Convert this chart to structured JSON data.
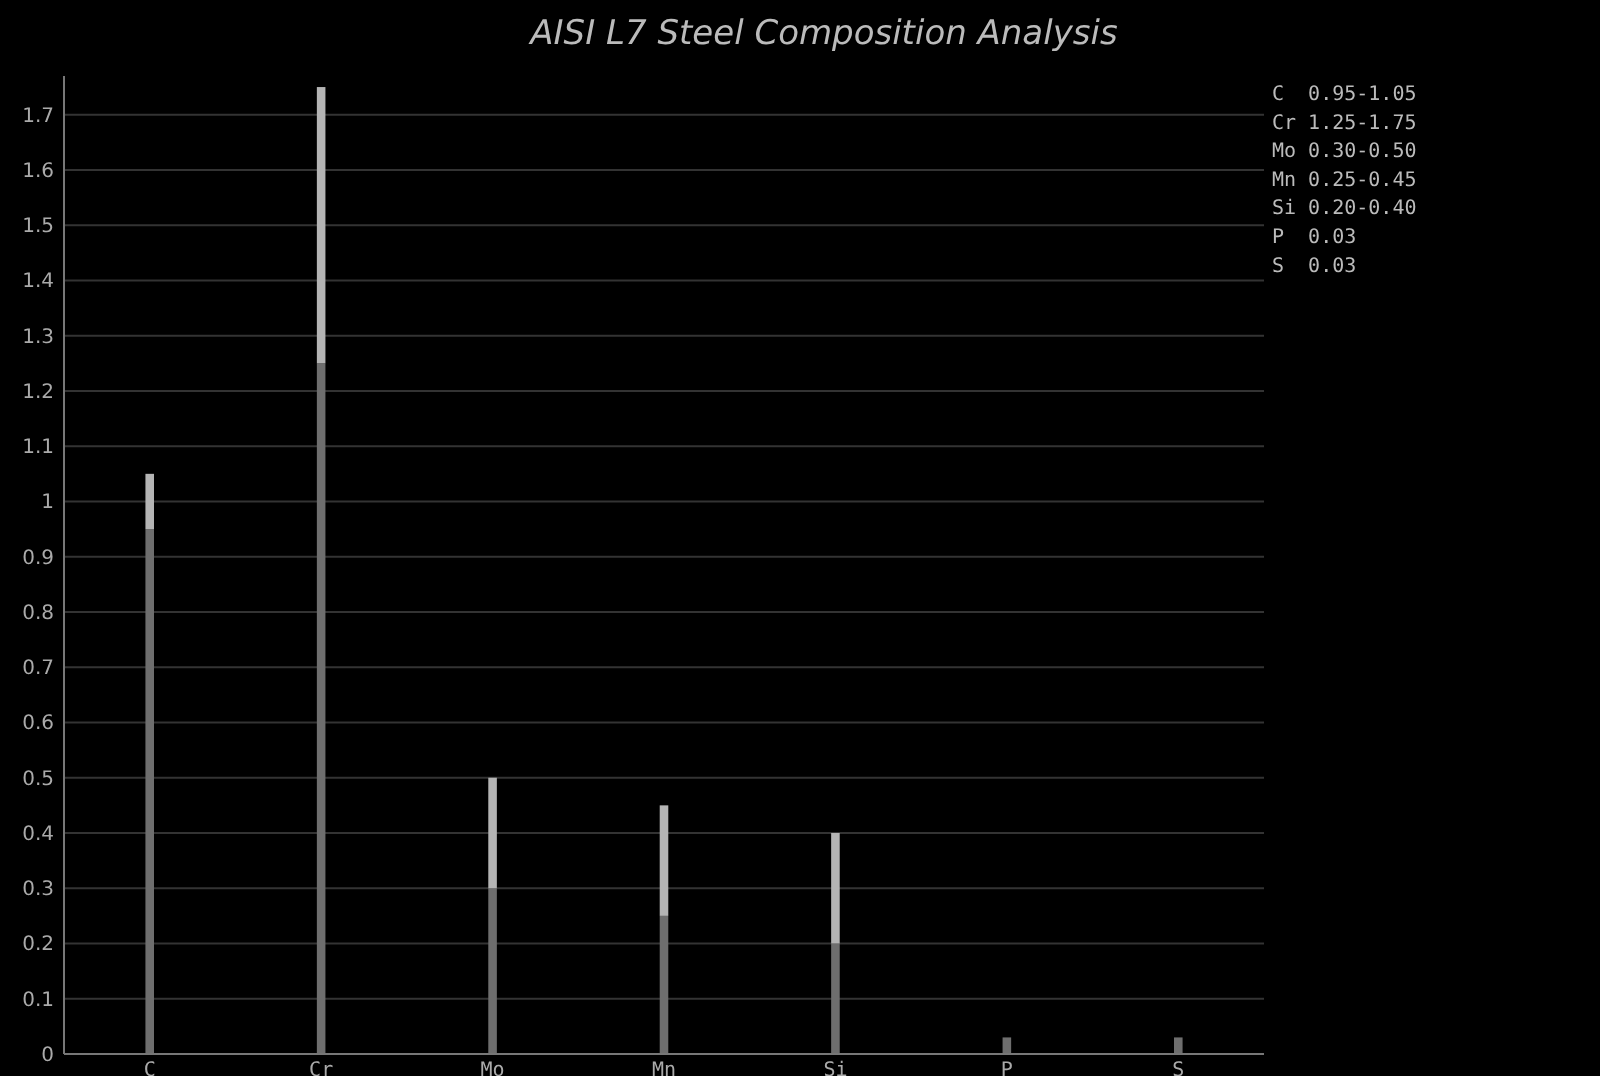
{
  "chart_data": {
    "type": "bar",
    "title": "AISI L7 Steel Composition Analysis",
    "categories": [
      "C",
      "Cr",
      "Mo",
      "Mn",
      "Si",
      "P",
      "S"
    ],
    "stacked": true,
    "series": [
      {
        "color": "#6e6e6e",
        "values": [
          0.95,
          1.25,
          0.3,
          0.25,
          0.2,
          0.03,
          0.03
        ]
      },
      {
        "color": "#b4b4b4",
        "values": [
          0.1,
          0.5,
          0.2,
          0.2,
          0.2,
          0,
          0
        ]
      }
    ],
    "ylim": [
      0,
      1.77
    ],
    "yticks": [
      0,
      0.1,
      0.2,
      0.3,
      0.4,
      0.5,
      0.6,
      0.7,
      0.8,
      0.9,
      1,
      1.1,
      1.2,
      1.3,
      1.4,
      1.5,
      1.6,
      1.7
    ],
    "grid": "y",
    "annotations": [
      "C  0.95-1.05",
      "Cr 1.25-1.75",
      "Mo 0.30-0.50",
      "Mn 0.25-0.45",
      "Si 0.20-0.40",
      "P  0.03",
      "S  0.03"
    ]
  }
}
